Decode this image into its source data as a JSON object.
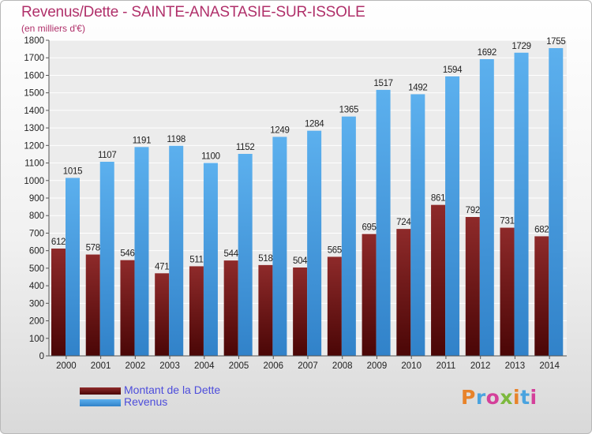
{
  "title": "Revenus/Dette - SAINTE-ANASTASIE-SUR-ISSOLE",
  "subtitle": "(en milliers d'€)",
  "logo": {
    "text": "Proxiti",
    "colors": [
      "#e8832a",
      "#4aa3df",
      "#d4409a",
      "#7db93e",
      "#e8832a",
      "#4aa3df",
      "#d4409a"
    ]
  },
  "colors": {
    "dette": "#7a1a1a",
    "revenus": "#4aa3e6"
  },
  "chart_data": {
    "type": "bar",
    "title": "Revenus/Dette - SAINTE-ANASTASIE-SUR-ISSOLE",
    "xlabel": "",
    "ylabel": "",
    "ylim": [
      0,
      1800
    ],
    "yticks": [
      0,
      100,
      200,
      300,
      400,
      500,
      600,
      700,
      800,
      900,
      1000,
      1100,
      1200,
      1300,
      1400,
      1500,
      1600,
      1700,
      1800
    ],
    "grid": true,
    "legend": "bottom-left",
    "categories": [
      "2000",
      "2001",
      "2002",
      "2003",
      "2004",
      "2005",
      "2006",
      "2007",
      "2008",
      "2009",
      "2010",
      "2011",
      "2012",
      "2013",
      "2014"
    ],
    "series": [
      {
        "name": "Montant de la Dette",
        "values": [
          612,
          578,
          546,
          471,
          511,
          544,
          518,
          504,
          565,
          695,
          724,
          861,
          792,
          731,
          682
        ]
      },
      {
        "name": "Revenus",
        "values": [
          1015,
          1107,
          1191,
          1198,
          1100,
          1152,
          1249,
          1284,
          1365,
          1517,
          1492,
          1594,
          1692,
          1729,
          1755
        ]
      }
    ]
  }
}
